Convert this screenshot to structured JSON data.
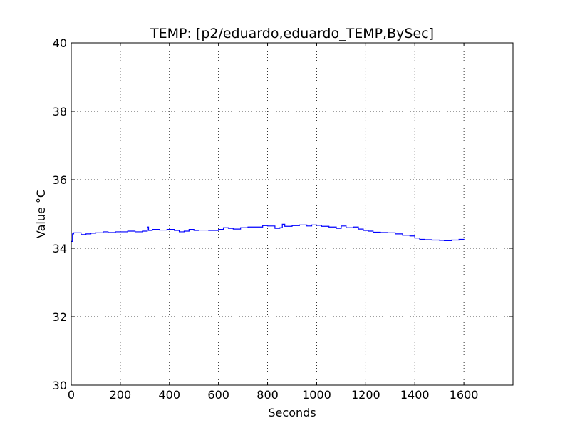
{
  "chart_data": {
    "type": "line",
    "title": "TEMP: [p2/eduardo,eduardo_TEMP,BySec]",
    "xlabel": "Seconds",
    "ylabel": "Value °C",
    "xlim": [
      0,
      1800
    ],
    "ylim": [
      30,
      40
    ],
    "xticks": [
      0,
      200,
      400,
      600,
      800,
      1000,
      1200,
      1400,
      1600
    ],
    "yticks": [
      30,
      32,
      34,
      36,
      38,
      40
    ],
    "grid": true,
    "legend": "none",
    "colors": {
      "series": "#0000ff",
      "grid": "#000000",
      "frame": "#000000"
    },
    "series": [
      {
        "x": [
          0,
          5,
          10,
          20,
          40,
          60,
          80,
          100,
          130,
          150,
          180,
          200,
          230,
          260,
          290,
          310,
          315,
          330,
          360,
          390,
          420,
          440,
          460,
          480,
          500,
          520,
          560,
          600,
          620,
          640,
          660,
          690,
          720,
          750,
          780,
          800,
          830,
          850,
          860,
          870,
          900,
          930,
          960,
          980,
          1000,
          1020,
          1050,
          1080,
          1100,
          1120,
          1150,
          1170,
          1190,
          1210,
          1230,
          1260,
          1290,
          1320,
          1350,
          1380,
          1400,
          1420,
          1440,
          1470,
          1500,
          1520,
          1550,
          1580,
          1600
        ],
        "y": [
          34.2,
          34.42,
          34.45,
          34.45,
          34.4,
          34.42,
          34.44,
          34.45,
          34.48,
          34.46,
          34.48,
          34.48,
          34.5,
          34.48,
          34.5,
          34.62,
          34.52,
          34.55,
          34.53,
          34.55,
          34.52,
          34.48,
          34.5,
          34.55,
          34.52,
          34.53,
          34.52,
          34.55,
          34.6,
          34.58,
          34.56,
          34.6,
          34.62,
          34.62,
          34.66,
          34.65,
          34.58,
          34.6,
          34.7,
          34.64,
          34.66,
          34.68,
          34.65,
          34.68,
          34.67,
          34.64,
          34.62,
          34.58,
          34.65,
          34.6,
          34.62,
          34.56,
          34.52,
          34.5,
          34.47,
          34.46,
          34.45,
          34.42,
          34.38,
          34.36,
          34.3,
          34.26,
          34.25,
          34.24,
          34.23,
          34.22,
          34.24,
          34.26,
          34.25
        ]
      }
    ]
  }
}
